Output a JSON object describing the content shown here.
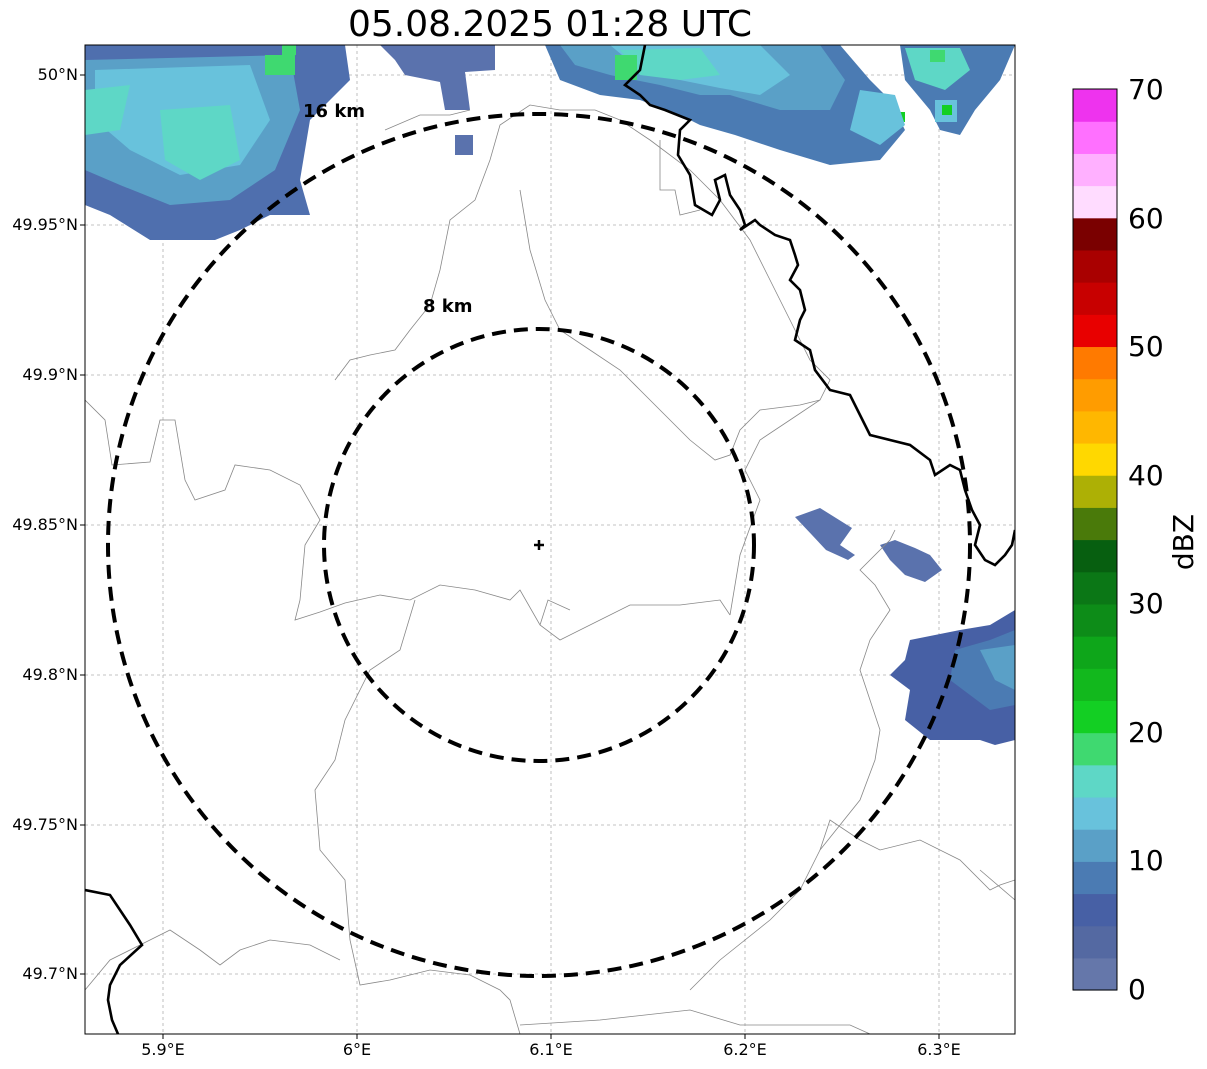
{
  "title": "05.08.2025 01:28 UTC",
  "map": {
    "center": {
      "lon": 6.095,
      "lat": 49.843
    },
    "extent": {
      "lon": [
        5.86,
        6.34
      ],
      "lat": [
        49.68,
        50.01
      ]
    },
    "lat_ticks": [
      {
        "value": 50.0,
        "label": "50°N"
      },
      {
        "value": 49.95,
        "label": "49.95°N"
      },
      {
        "value": 49.9,
        "label": "49.9°N"
      },
      {
        "value": 49.85,
        "label": "49.85°N"
      },
      {
        "value": 49.8,
        "label": "49.8°N"
      },
      {
        "value": 49.75,
        "label": "49.75°N"
      },
      {
        "value": 49.7,
        "label": "49.7°N"
      }
    ],
    "lon_ticks": [
      {
        "value": 5.9,
        "label": "5.9°E"
      },
      {
        "value": 6.0,
        "label": "6°E"
      },
      {
        "value": 6.1,
        "label": "6.1°E"
      },
      {
        "value": 6.2,
        "label": "6.2°E"
      },
      {
        "value": 6.3,
        "label": "6.3°E"
      }
    ],
    "rings": [
      {
        "radius_km": 8,
        "label": "8 km"
      },
      {
        "radius_km": 16,
        "label": "16 km"
      }
    ],
    "gridlines": true
  },
  "colorbar": {
    "label": "dBZ",
    "ticks": [
      "0",
      "10",
      "20",
      "30",
      "40",
      "50",
      "60",
      "70"
    ],
    "colors": [
      "#6577aa",
      "#5469a2",
      "#4760a5",
      "#4b7bb3",
      "#5aa0c7",
      "#68c2dc",
      "#5ed7c6",
      "#3fd970",
      "#13cf23",
      "#12b81d",
      "#0ea61a",
      "#0d8c18",
      "#0b7716",
      "#075f10",
      "#4a7a0a",
      "#adb005",
      "#ffd800",
      "#ffb700",
      "#ff9c00",
      "#ff7a00",
      "#e80000",
      "#c80000",
      "#a90000",
      "#7a0000",
      "#ffdcff",
      "#ffb0ff",
      "#ff70ff",
      "#ee33ee"
    ]
  }
}
